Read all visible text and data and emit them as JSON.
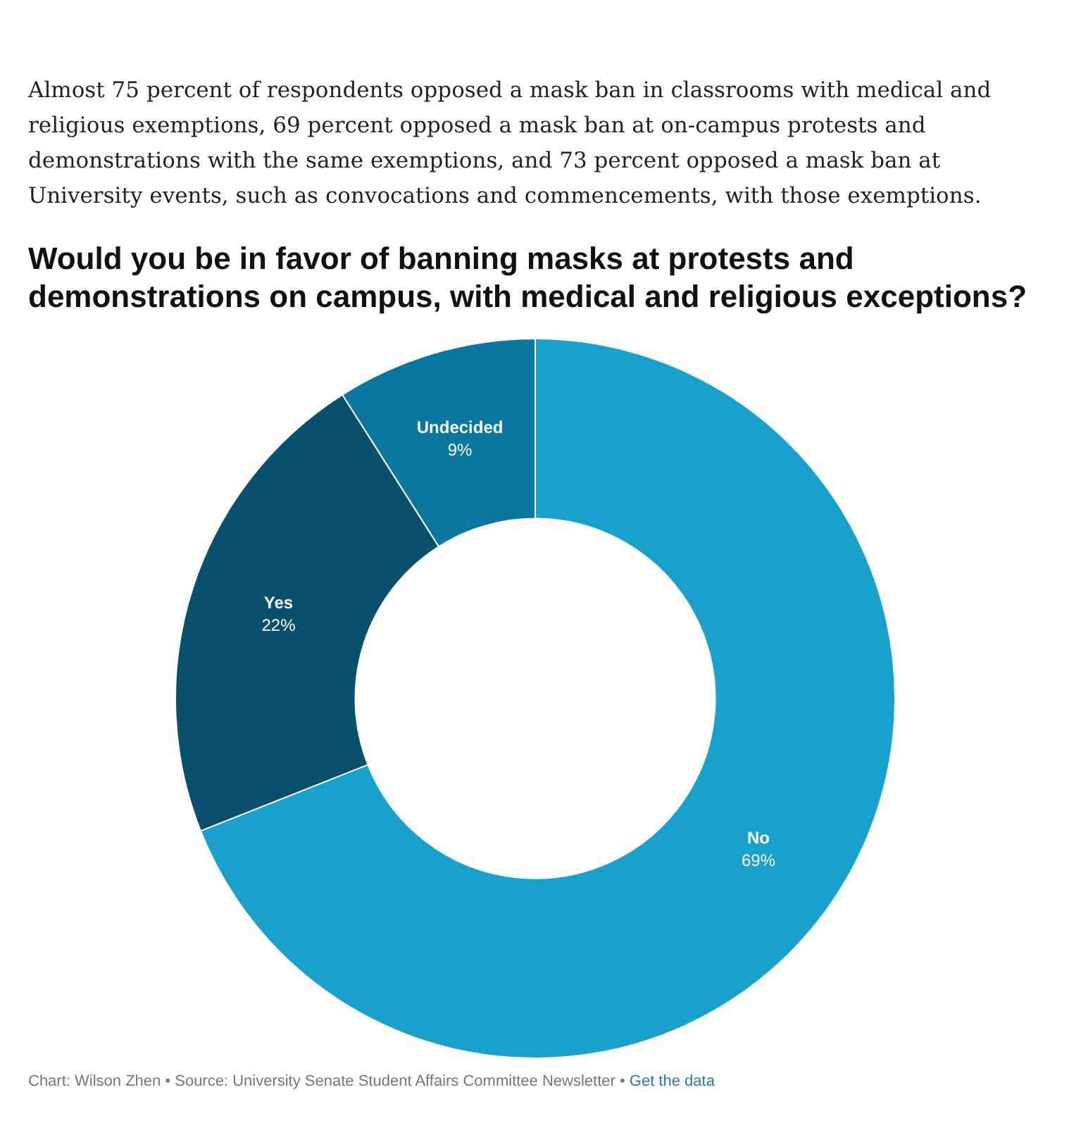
{
  "chart_data": {
    "type": "donut",
    "subtitle": "Almost 75 percent of respondents opposed a mask ban in classrooms with medical and religious exemptions, 69 percent opposed a mask ban at on-campus protests and demonstrations with the same exemptions, and 73 percent opposed a mask ban at University events, such as convocations and commencements, with those exemptions.",
    "title": "Would you be in favor of banning masks at protests and demonstrations on campus, with medical and religious exceptions?",
    "categories": [
      "No",
      "Yes",
      "Undecided"
    ],
    "values": [
      69,
      22,
      9
    ],
    "colors": [
      "#18a1cd",
      "#09506f",
      "#0a77a0"
    ],
    "value_labels": [
      "69%",
      "22%",
      "9%"
    ],
    "legend": false,
    "annotations": [
      "Chart: Wilson Zhen • Source: University Senate Student Affairs Committee Newsletter •",
      "Get the data"
    ]
  }
}
